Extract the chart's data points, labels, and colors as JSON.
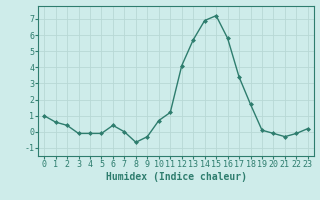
{
  "x": [
    0,
    1,
    2,
    3,
    4,
    5,
    6,
    7,
    8,
    9,
    10,
    11,
    12,
    13,
    14,
    15,
    16,
    17,
    18,
    19,
    20,
    21,
    22,
    23
  ],
  "y": [
    1.0,
    0.6,
    0.4,
    -0.1,
    -0.1,
    -0.1,
    0.4,
    0.0,
    -0.65,
    -0.3,
    0.7,
    1.2,
    4.1,
    5.7,
    6.9,
    7.2,
    5.8,
    3.4,
    1.7,
    0.1,
    -0.1,
    -0.3,
    -0.1,
    0.2
  ],
  "line_color": "#2e7d6e",
  "marker": "D",
  "marker_size": 2,
  "bg_color": "#ceecea",
  "grid_color": "#b8d8d5",
  "xlabel": "Humidex (Indice chaleur)",
  "xlabel_fontsize": 7,
  "ylim": [
    -1.5,
    7.8
  ],
  "xlim": [
    -0.5,
    23.5
  ],
  "yticks": [
    -1,
    0,
    1,
    2,
    3,
    4,
    5,
    6,
    7
  ],
  "xticks": [
    0,
    1,
    2,
    3,
    4,
    5,
    6,
    7,
    8,
    9,
    10,
    11,
    12,
    13,
    14,
    15,
    16,
    17,
    18,
    19,
    20,
    21,
    22,
    23
  ],
  "tick_fontsize": 6
}
